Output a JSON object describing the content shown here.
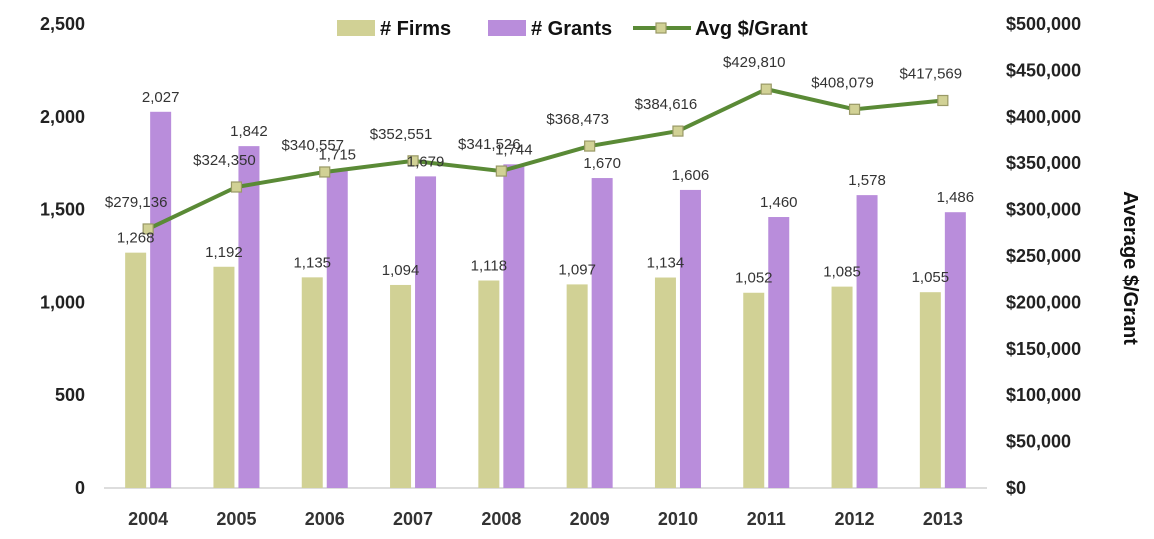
{
  "chart_data": {
    "type": "bar",
    "categories": [
      "2004",
      "2005",
      "2006",
      "2007",
      "2008",
      "2009",
      "2010",
      "2011",
      "2012",
      "2013"
    ],
    "series": [
      {
        "name": "# Firms",
        "type": "bar",
        "axis": "left",
        "color": "#d1d195",
        "values": [
          1268,
          1192,
          1135,
          1094,
          1118,
          1097,
          1134,
          1052,
          1085,
          1055
        ],
        "labels": [
          "1,268",
          "1,192",
          "1,135",
          "1,094",
          "1,118",
          "1,097",
          "1,134",
          "1,052",
          "1,085",
          "1,055"
        ]
      },
      {
        "name": "# Grants",
        "type": "bar",
        "axis": "left",
        "color": "#b98ddb",
        "values": [
          2027,
          1842,
          1715,
          1679,
          1744,
          1670,
          1606,
          1460,
          1578,
          1486
        ],
        "labels": [
          "2,027",
          "1,842",
          "1,715",
          "1,679",
          "1,744",
          "1,670",
          "1,606",
          "1,460",
          "1,578",
          "1,486"
        ]
      },
      {
        "name": "Avg $/Grant",
        "type": "line",
        "axis": "right",
        "color": "#5a8a36",
        "marker_color": "#d1d195",
        "values": [
          279136,
          324350,
          340557,
          352551,
          341526,
          368473,
          384616,
          429810,
          408079,
          417569
        ],
        "labels": [
          "$279,136",
          "$324,350",
          "$340,557",
          "$352,551",
          "$341,526",
          "$368,473",
          "$384,616",
          "$429,810",
          "$408,079",
          "$417,569"
        ]
      }
    ],
    "left_axis": {
      "ylim": [
        0,
        2500
      ],
      "ticks": [
        0,
        500,
        1000,
        1500,
        2000,
        2500
      ],
      "tick_labels": [
        "0",
        "500",
        "1,000",
        "1,500",
        "2,000",
        "2,500"
      ]
    },
    "right_axis": {
      "ylim": [
        0,
        500000
      ],
      "label": "Average $/Grant",
      "ticks": [
        0,
        50000,
        100000,
        150000,
        200000,
        250000,
        300000,
        350000,
        400000,
        450000,
        500000
      ],
      "tick_labels": [
        "$0",
        "$50,000",
        "$100,000",
        "$150,000",
        "$200,000",
        "$250,000",
        "$300,000",
        "$350,000",
        "$400,000",
        "$450,000",
        "$500,000"
      ]
    },
    "legend": {
      "placement": "top-center"
    },
    "grid": false
  }
}
